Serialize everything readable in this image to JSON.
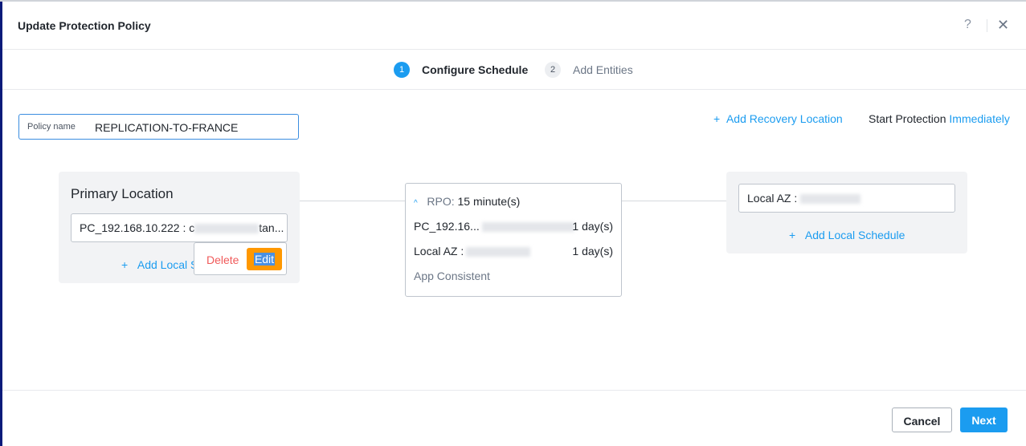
{
  "dialog": {
    "title": "Update Protection Policy",
    "help_icon": "?",
    "close_icon": "✕"
  },
  "steps": [
    {
      "num": "1",
      "label": "Configure Schedule",
      "active": true
    },
    {
      "num": "2",
      "label": "Add Entities",
      "active": false
    }
  ],
  "policy": {
    "label": "Policy name",
    "value": "REPLICATION-TO-FRANCE"
  },
  "actions": {
    "add_recovery": "Add Recovery Location",
    "start_label": "Start Protection",
    "start_value": "Immediately"
  },
  "primary": {
    "title": "Primary Location",
    "location": "PC_192.168.10.222 : c",
    "location_tail": "tan...",
    "add_schedule": "Add Local S",
    "delete": "Delete",
    "edit": "Edit"
  },
  "rpo": {
    "label": "RPO:",
    "value": "15 minute(s)",
    "rows": [
      {
        "name": "PC_192.16...",
        "retention": "1 day(s)"
      },
      {
        "name": "Local AZ :",
        "retention": "1 day(s)"
      }
    ],
    "consistency": "App Consistent"
  },
  "recovery": {
    "location": "Local AZ :",
    "add_schedule": "Add Local Schedule"
  },
  "footer": {
    "cancel": "Cancel",
    "next": "Next"
  },
  "colors": {
    "accent": "#1b9cf0",
    "edit": "#ff9800",
    "delete": "#f05a5a"
  }
}
